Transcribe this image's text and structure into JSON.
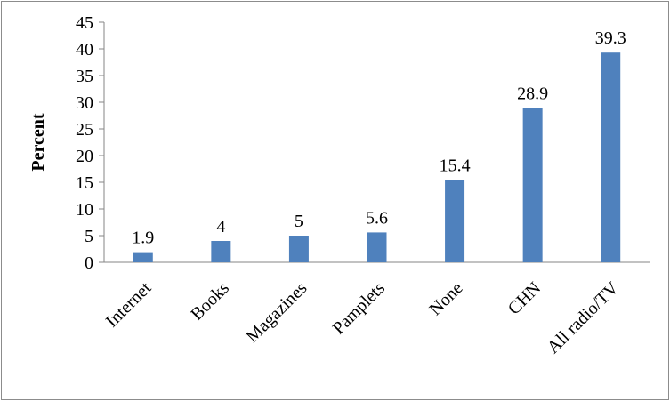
{
  "chart_data": {
    "type": "bar",
    "categories": [
      "Internet",
      "Books",
      "Magazines",
      "Pamplets",
      "None",
      "CHN",
      "All radio/TV"
    ],
    "values": [
      1.9,
      4,
      5,
      5.6,
      15.4,
      28.9,
      39.3
    ],
    "data_labels": [
      "1.9",
      "4",
      "5",
      "5.6",
      "15.4",
      "28.9",
      "39.3"
    ],
    "title": "",
    "xlabel": "",
    "ylabel": "Percent",
    "ylim": [
      0,
      45
    ],
    "yticks": [
      "0",
      "5",
      "10",
      "15",
      "20",
      "25",
      "30",
      "35",
      "40",
      "45"
    ],
    "grid": false,
    "legend": "none",
    "bar_color": "#4f81bd"
  }
}
